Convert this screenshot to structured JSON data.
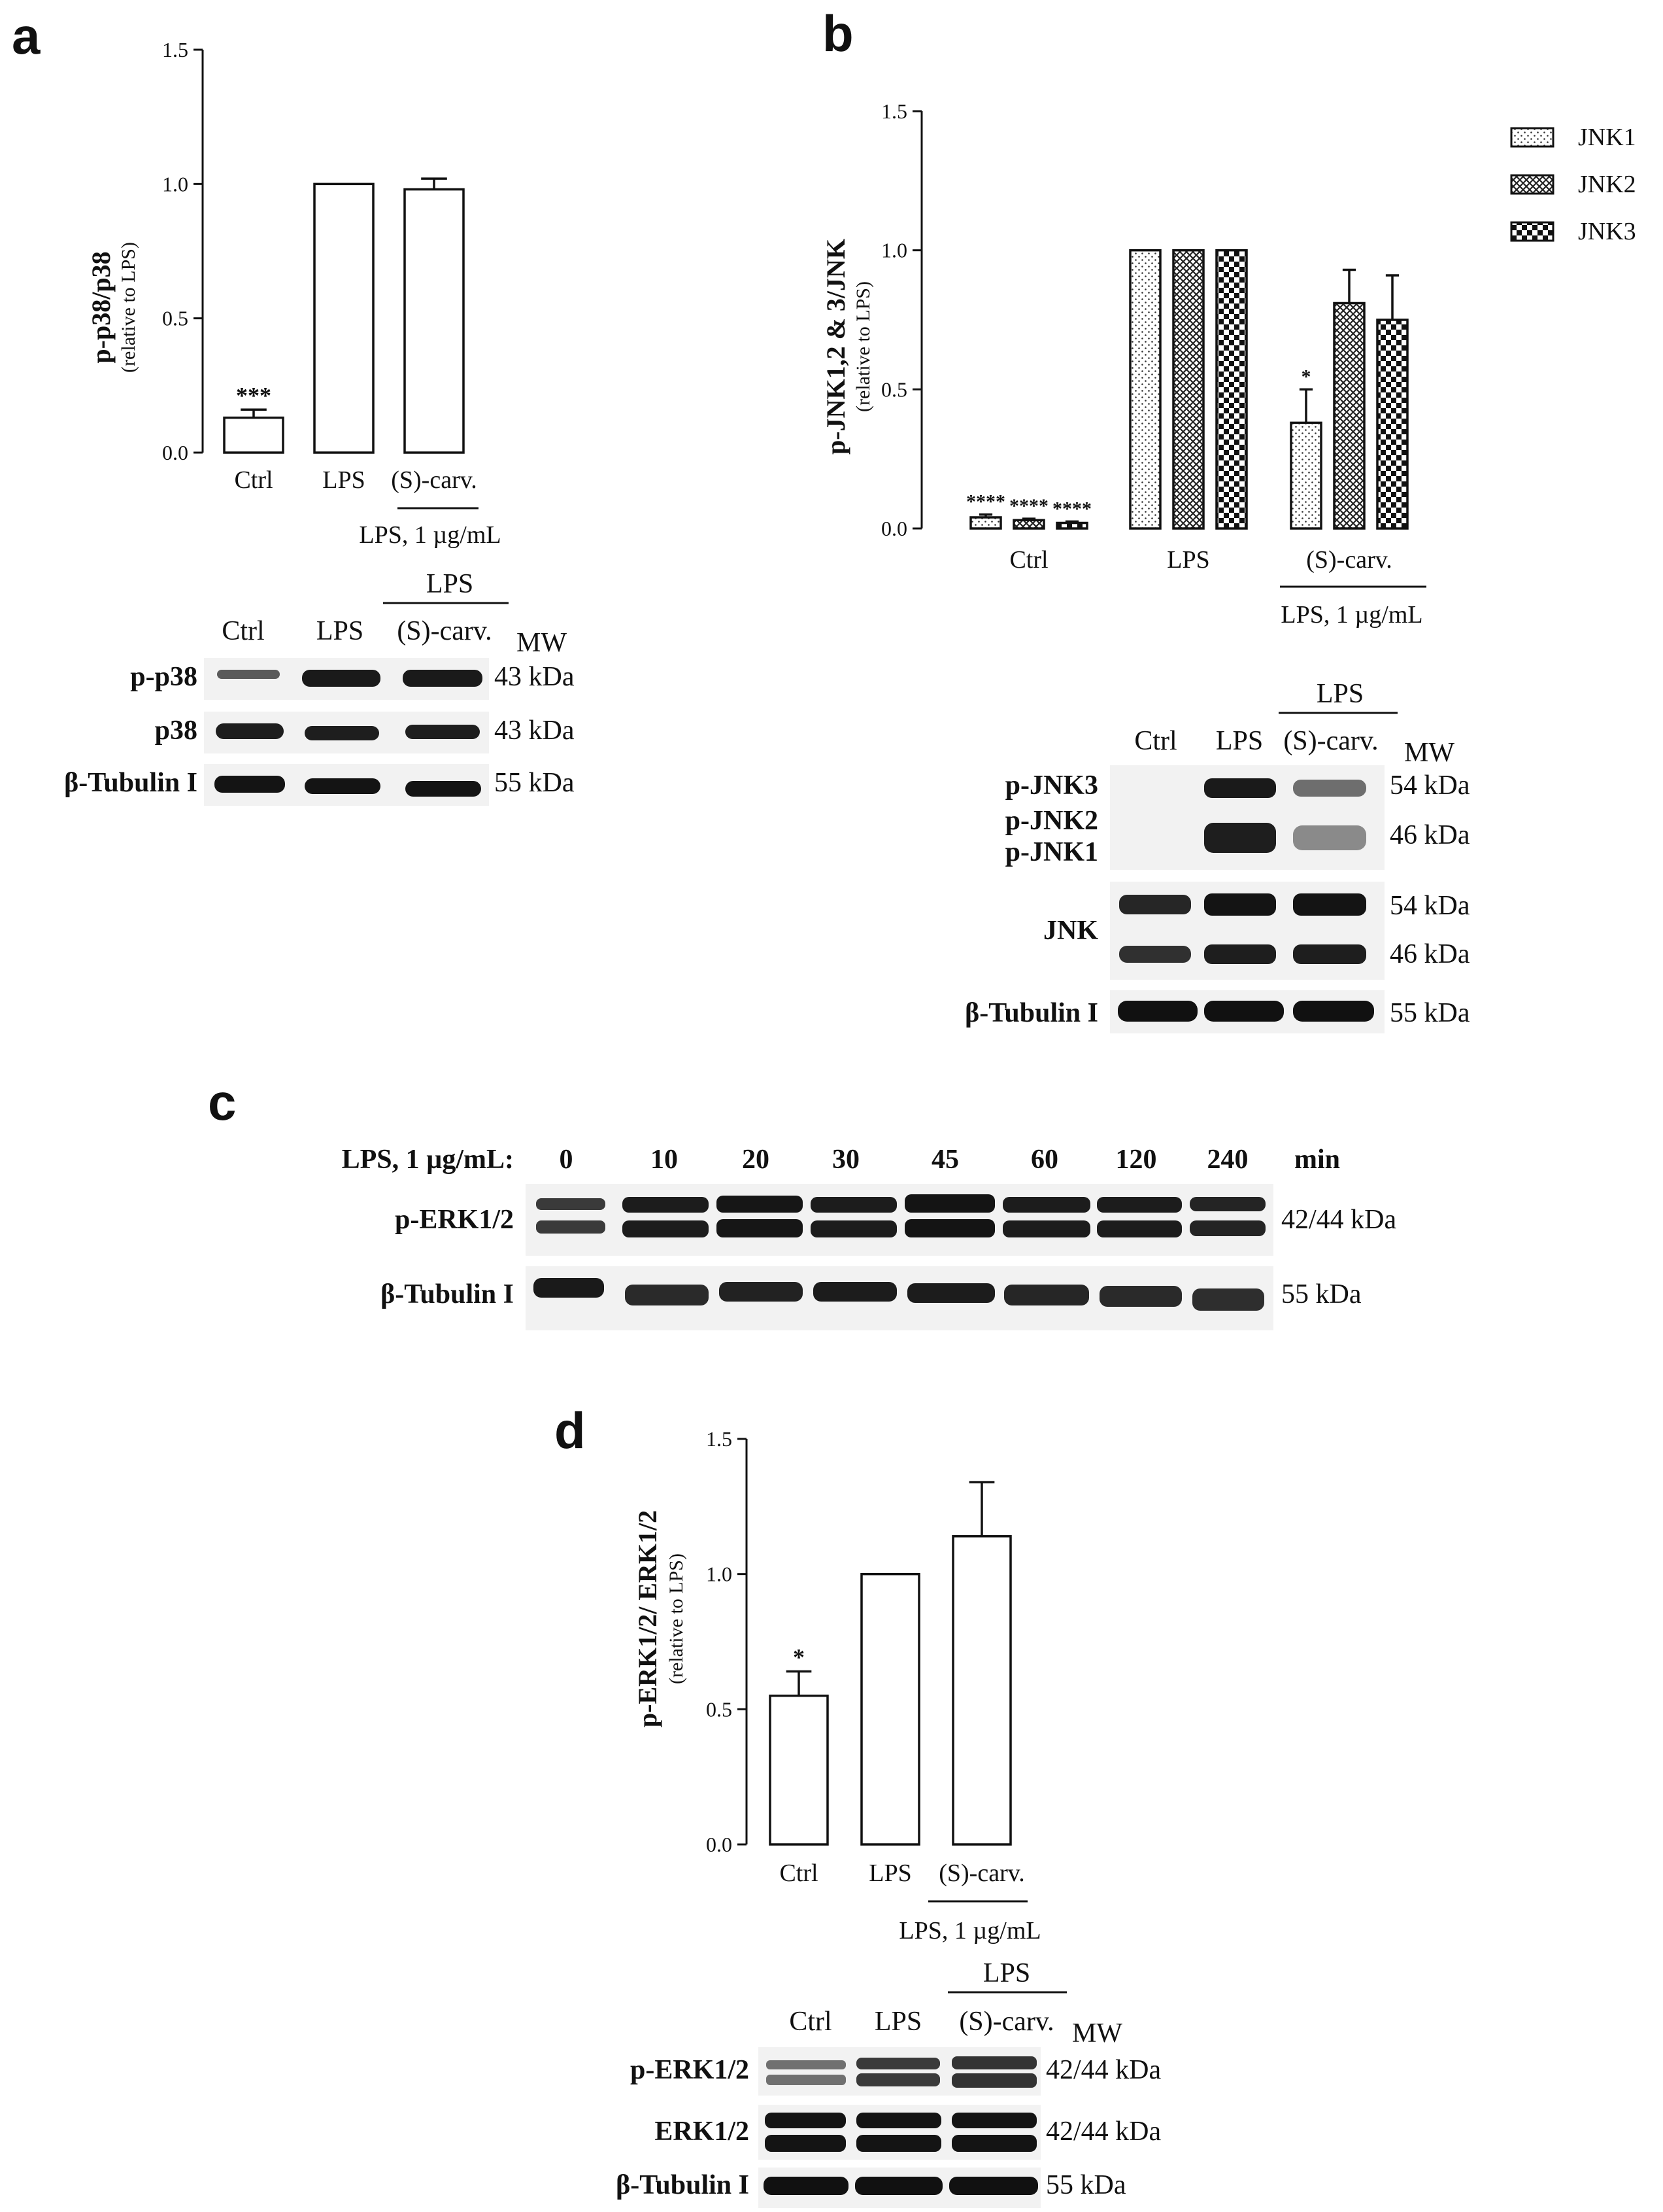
{
  "panel_a": {
    "letter": "a",
    "ylabel": "p-p38/p38",
    "ysub": "(relative to LPS)",
    "treatment_label": "LPS, 1 µg/mL",
    "blot": {
      "group_label": "LPS",
      "lanes": [
        "Ctrl",
        "LPS",
        "(S)-carv."
      ],
      "mw_header": "MW",
      "rows": [
        {
          "label": "p-p38",
          "mw": "43 kDa"
        },
        {
          "label": "p38",
          "mw": "43 kDa"
        },
        {
          "label": "β-Tubulin I",
          "mw": "55 kDa"
        }
      ]
    }
  },
  "panel_b": {
    "letter": "b",
    "ylabel": "p-JNK1,2 & 3/JNK",
    "ysub": "(relative to LPS)",
    "treatment_label": "LPS, 1 µg/mL",
    "blot": {
      "group_label": "LPS",
      "lanes": [
        "Ctrl",
        "LPS",
        "(S)-carv."
      ],
      "mw_header": "MW",
      "rows": [
        {
          "label": "p-JNK3",
          "mw": "54 kDa"
        },
        {
          "label": "p-JNK2",
          "mw": "46 kDa"
        },
        {
          "label": "p-JNK1",
          "mw": ""
        },
        {
          "label": "JNK",
          "mw": "54 kDa",
          "mw2": "46 kDa"
        },
        {
          "label": "β-Tubulin I",
          "mw": "55 kDa"
        }
      ]
    }
  },
  "panel_c": {
    "letter": "c",
    "treatment_label": "LPS, 1 µg/mL:",
    "timepoints": [
      "0",
      "10",
      "20",
      "30",
      "45",
      "60",
      "120",
      "240"
    ],
    "time_unit": "min",
    "rows": [
      {
        "label": "p-ERK1/2",
        "mw": "42/44 kDa"
      },
      {
        "label": "β-Tubulin I",
        "mw": "55 kDa"
      }
    ]
  },
  "panel_d": {
    "letter": "d",
    "ylabel": "p-ERK1/2/ ERK1/2",
    "ysub": "(relative to LPS)",
    "treatment_label": "LPS, 1 µg/mL",
    "blot": {
      "group_label": "LPS",
      "lanes": [
        "Ctrl",
        "LPS",
        "(S)-carv."
      ],
      "mw_header": "MW",
      "rows": [
        {
          "label": "p-ERK1/2",
          "mw": "42/44 kDa"
        },
        {
          "label": "ERK1/2",
          "mw": "42/44 kDa"
        },
        {
          "label": "β-Tubulin I",
          "mw": "55 kDa"
        }
      ]
    }
  },
  "chart_data": [
    {
      "type": "bar",
      "panel": "a",
      "categories": [
        "Ctrl",
        "LPS",
        "(S)-carv."
      ],
      "values": [
        0.13,
        1.0,
        0.98
      ],
      "errors": [
        0.03,
        0.0,
        0.04
      ],
      "significance": [
        "***",
        "",
        ""
      ],
      "ylabel": "p-p38/p38 (relative to LPS)",
      "ylim": [
        0,
        1.5
      ],
      "yticks": [
        "0.0",
        "0.5",
        "1.0",
        "1.5"
      ]
    },
    {
      "type": "bar",
      "panel": "b",
      "categories": [
        "Ctrl",
        "LPS",
        "(S)-carv."
      ],
      "series": [
        {
          "name": "JNK1",
          "values": [
            0.04,
            1.0,
            0.38
          ],
          "errors": [
            0.01,
            0.0,
            0.12
          ],
          "significance": [
            "****",
            "",
            "*"
          ],
          "pattern": "dots"
        },
        {
          "name": "JNK2",
          "values": [
            0.03,
            1.0,
            0.81
          ],
          "errors": [
            0.005,
            0.0,
            0.12
          ],
          "significance": [
            "****",
            "",
            ""
          ],
          "pattern": "crosshatch"
        },
        {
          "name": "JNK3",
          "values": [
            0.02,
            1.0,
            0.75
          ],
          "errors": [
            0.005,
            0.0,
            0.16
          ],
          "significance": [
            "****",
            "",
            ""
          ],
          "pattern": "checker"
        }
      ],
      "ylabel": "p-JNK1,2 & 3/JNK (relative to LPS)",
      "ylim": [
        0,
        1.5
      ],
      "yticks": [
        "0.0",
        "0.5",
        "1.0",
        "1.5"
      ],
      "legend": "top-right"
    },
    {
      "type": "bar",
      "panel": "d",
      "categories": [
        "Ctrl",
        "LPS",
        "(S)-carv."
      ],
      "values": [
        0.55,
        1.0,
        1.14
      ],
      "errors": [
        0.09,
        0.0,
        0.2
      ],
      "significance": [
        "*",
        "",
        ""
      ],
      "ylabel": "p-ERK1/2/ ERK1/2 (relative to LPS)",
      "ylim": [
        0,
        1.5
      ],
      "yticks": [
        "0.0",
        "0.5",
        "1.0",
        "1.5"
      ]
    }
  ],
  "colors": {
    "ink": "#111111",
    "blot_bg": "#f2f2f2",
    "band": "#1a1a1a"
  }
}
